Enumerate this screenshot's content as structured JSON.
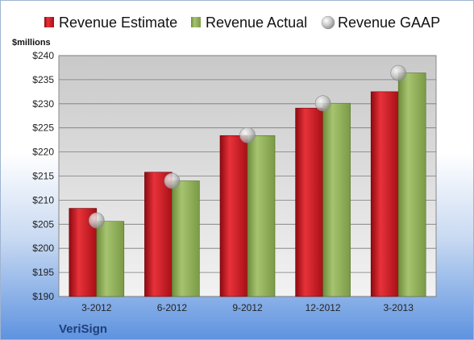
{
  "chart_data": {
    "type": "bar",
    "company": "VeriSign",
    "unit_label": "$millions",
    "categories": [
      "3-2012",
      "6-2012",
      "9-2012",
      "12-2012",
      "3-2013"
    ],
    "series": [
      {
        "name": "Revenue Estimate",
        "kind": "bar",
        "color": "#c0141c",
        "values": [
          208.3,
          215.8,
          223.4,
          229.1,
          232.5
        ]
      },
      {
        "name": "Revenue Actual",
        "kind": "bar",
        "color": "#8fb158",
        "values": [
          205.6,
          214.0,
          223.4,
          230.1,
          236.4
        ]
      },
      {
        "name": "Revenue GAAP",
        "kind": "marker",
        "color": "#b8b8b8",
        "values": [
          205.8,
          214.0,
          223.5,
          230.1,
          236.4
        ]
      }
    ],
    "ylim": [
      190,
      240
    ],
    "yticks": [
      "$190",
      "$195",
      "$200",
      "$205",
      "$210",
      "$215",
      "$220",
      "$225",
      "$230",
      "$235",
      "$240"
    ],
    "grid": true,
    "legend_position": "top"
  }
}
